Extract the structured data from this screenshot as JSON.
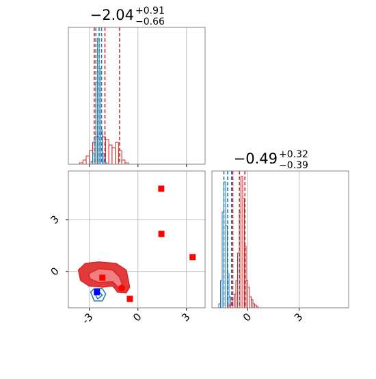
{
  "chart_data": [
    {
      "type": "histogram",
      "title": {
        "value": "−2.04",
        "upper": "+0.91",
        "lower": "−0.66"
      },
      "xlim": [
        -4.3,
        4.15
      ],
      "xticks": [
        -3,
        0,
        3
      ],
      "ylim": [
        0,
        100
      ],
      "grid": true,
      "series": [
        {
          "color": "#d62728",
          "bins": [
            -3.6,
            -3.4,
            -3.2,
            -3.0,
            -2.8,
            -2.6,
            -2.4,
            -2.2,
            -2.0,
            -1.8,
            -1.6,
            -1.4,
            -1.2,
            -1.0,
            -0.8,
            -0.6
          ],
          "counts": [
            1,
            3,
            6,
            10,
            16,
            20,
            22,
            20,
            18,
            14,
            12,
            16,
            10,
            3,
            1
          ],
          "quantiles": [
            -2.7,
            -2.04,
            -1.13
          ]
        },
        {
          "color": "#1f77b4",
          "bins": [
            -2.9,
            -2.8,
            -2.7,
            -2.6,
            -2.5,
            -2.4,
            -2.3,
            -2.2,
            -2.1,
            -2.0,
            -1.9,
            -1.8
          ],
          "counts": [
            2,
            8,
            20,
            60,
            92,
            70,
            25,
            8,
            3,
            1,
            0
          ],
          "quantiles": [
            -2.6,
            -2.4,
            -2.25
          ]
        }
      ]
    },
    {
      "type": "contour",
      "xlim": [
        -4.3,
        4.15
      ],
      "ylim": [
        -2.1,
        5.8
      ],
      "xticks": [
        -3,
        0,
        3
      ],
      "yticks": [
        0,
        3
      ],
      "grid": true,
      "contours": [
        {
          "color": "#d62728",
          "fill": "#e03a3a",
          "x": [
            -3.68,
            -3.25,
            -2.41,
            -1.35,
            -0.72,
            -0.59,
            -0.51,
            -0.72,
            -1.27,
            -1.56,
            -2.2,
            -3.04,
            -3.55
          ],
          "y": [
            0.08,
            0.47,
            0.55,
            0.47,
            0.08,
            -0.51,
            -0.91,
            -1.23,
            -1.19,
            -0.83,
            -0.91,
            -0.83,
            -0.51
          ]
        },
        {
          "color": "#d62728",
          "fill": "#f08080",
          "x": [
            -3.04,
            -2.41,
            -1.56,
            -1.14,
            -0.93,
            -1.14,
            -1.56,
            -2.41,
            -2.96
          ],
          "y": [
            -0.12,
            0.16,
            0.08,
            -0.32,
            -0.83,
            -0.99,
            -0.59,
            -0.63,
            -0.43
          ]
        },
        {
          "color": "#1f77b4",
          "fill": "none",
          "x": [
            -2.92,
            -2.7,
            -2.2,
            -1.99,
            -2.2,
            -2.7
          ],
          "y": [
            -1.19,
            -0.99,
            -0.99,
            -1.3,
            -1.7,
            -1.7
          ]
        },
        {
          "color": "#1f77b4",
          "fill": "none",
          "x": [
            -2.7,
            -2.41,
            -2.2,
            -2.49
          ],
          "y": [
            -1.23,
            -1.15,
            -1.38,
            -1.58
          ]
        }
      ],
      "points": [
        {
          "x": 1.44,
          "y": 4.78,
          "color": "#ff0000",
          "marker": "square"
        },
        {
          "x": 1.45,
          "y": 2.17,
          "color": "#ff0000",
          "marker": "square"
        },
        {
          "x": 3.38,
          "y": 0.83,
          "color": "#ff0000",
          "marker": "square"
        },
        {
          "x": -2.2,
          "y": -0.36,
          "color": "#ff0000",
          "marker": "square"
        },
        {
          "x": -0.5,
          "y": -1.58,
          "color": "#ff0000",
          "marker": "square"
        },
        {
          "x": -1.0,
          "y": -0.95,
          "color": "#ff0000",
          "marker": "circle"
        },
        {
          "x": -2.53,
          "y": -1.19,
          "color": "#0000ff",
          "marker": "square"
        }
      ]
    },
    {
      "type": "histogram",
      "title": {
        "value": "−0.49",
        "upper": "+0.32",
        "lower": "−0.39"
      },
      "xlim": [
        -2.1,
        5.9
      ],
      "xticks": [
        0,
        3
      ],
      "ylim": [
        0,
        100
      ],
      "grid": true,
      "series": [
        {
          "color": "#1f77b4",
          "bins": [
            -1.7,
            -1.6,
            -1.5,
            -1.4,
            -1.3,
            -1.2,
            -1.1,
            -1.0,
            -0.9
          ],
          "counts": [
            3,
            20,
            70,
            92,
            60,
            25,
            8,
            2
          ],
          "quantiles": [
            -1.4,
            -1.18,
            -0.95
          ]
        },
        {
          "color": "#d62728",
          "bins": [
            -1.2,
            -1.1,
            -1.0,
            -0.9,
            -0.8,
            -0.7,
            -0.6,
            -0.5,
            -0.4,
            -0.3,
            -0.2,
            -0.1,
            0.0,
            0.1,
            0.2,
            0.3,
            0.4,
            0.5,
            0.6
          ],
          "counts": [
            1,
            2,
            4,
            6,
            10,
            20,
            40,
            70,
            96,
            80,
            45,
            20,
            15,
            8,
            6,
            3,
            2,
            1
          ],
          "quantiles": [
            -0.88,
            -0.49,
            -0.17
          ]
        }
      ]
    }
  ]
}
